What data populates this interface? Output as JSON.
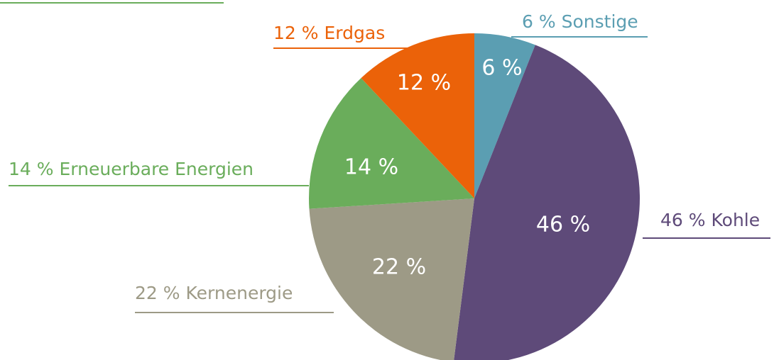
{
  "chart_data": {
    "type": "pie",
    "categories": [
      "Sonstige",
      "Kohle",
      "Kernenergie",
      "Erneuerbare Energien",
      "Erdgas"
    ],
    "values": [
      6,
      46,
      22,
      14,
      12
    ],
    "value_labels": [
      "6 %",
      "46 %",
      "22 %",
      "14 %",
      "12 %"
    ],
    "colors": [
      "#5b9eb2",
      "#5e4a79",
      "#9d9a86",
      "#6aad5b",
      "#eb6209"
    ],
    "start_angle": "top",
    "direction": "clockwise"
  }
}
